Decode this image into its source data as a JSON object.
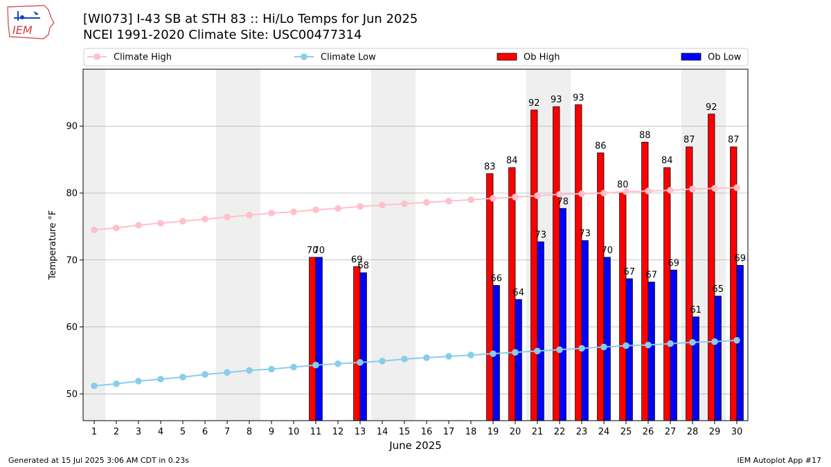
{
  "header": {
    "title_line1": "[WI073] I-43 SB at STH 83  :: Hi/Lo Temps for Jun 2025",
    "title_line2": "NCEI 1991-2020 Climate Site: USC00477314"
  },
  "logo": {
    "text": "IEM",
    "icon": "iowa-state-logo-icon"
  },
  "footer": {
    "left": "Generated at 15 Jul 2025 3:06 AM CDT in 0.23s",
    "right": "IEM Autoplot App #17"
  },
  "colors": {
    "climate_high": "#ffc0cb",
    "climate_low": "#87ceeb",
    "ob_high": "#ff0000",
    "ob_low": "#0000ff",
    "weekend_band": "#efefef",
    "grid": "#b0b0b0"
  },
  "chart_data": {
    "type": "bar",
    "xlabel": "June 2025",
    "ylabel": "Temperature °F",
    "xlim": [
      0.5,
      30.5
    ],
    "ylim": [
      46,
      98.5
    ],
    "yticks": [
      50,
      60,
      70,
      80,
      90
    ],
    "grid": "horizontal",
    "legend_placement": "top",
    "shaded_days": [
      1,
      7,
      8,
      14,
      15,
      21,
      22,
      28,
      29
    ],
    "days": [
      1,
      2,
      3,
      4,
      5,
      6,
      7,
      8,
      9,
      10,
      11,
      12,
      13,
      14,
      15,
      16,
      17,
      18,
      19,
      20,
      21,
      22,
      23,
      24,
      25,
      26,
      27,
      28,
      29,
      30
    ],
    "series": [
      {
        "name": "Climate High",
        "kind": "line",
        "values": [
          74.5,
          74.8,
          75.2,
          75.5,
          75.8,
          76.1,
          76.4,
          76.7,
          77.0,
          77.2,
          77.5,
          77.7,
          78.0,
          78.2,
          78.4,
          78.6,
          78.8,
          79.0,
          79.2,
          79.4,
          79.6,
          79.8,
          79.9,
          80.0,
          80.2,
          80.3,
          80.4,
          80.6,
          80.7,
          80.8
        ]
      },
      {
        "name": "Climate Low",
        "kind": "line",
        "values": [
          51.2,
          51.5,
          51.9,
          52.2,
          52.5,
          52.9,
          53.2,
          53.5,
          53.7,
          54.0,
          54.3,
          54.5,
          54.7,
          54.9,
          55.2,
          55.4,
          55.6,
          55.8,
          56.0,
          56.2,
          56.4,
          56.6,
          56.8,
          57.0,
          57.2,
          57.3,
          57.5,
          57.7,
          57.8,
          58.0
        ]
      },
      {
        "name": "Ob High",
        "kind": "bar",
        "values": [
          null,
          null,
          null,
          null,
          null,
          null,
          null,
          null,
          null,
          null,
          70.4,
          null,
          69.0,
          null,
          null,
          null,
          null,
          null,
          82.9,
          83.8,
          92.4,
          92.9,
          93.2,
          86.0,
          80.2,
          87.6,
          83.8,
          86.9,
          91.8,
          86.9
        ],
        "labels": [
          "",
          "",
          "",
          "",
          "",
          "",
          "",
          "",
          "",
          "",
          "70",
          "",
          "69",
          "",
          "",
          "",
          "",
          "",
          "83",
          "84",
          "92",
          "93",
          "93",
          "86",
          "80",
          "88",
          "84",
          "87",
          "92",
          "87"
        ]
      },
      {
        "name": "Ob Low",
        "kind": "bar",
        "values": [
          null,
          null,
          null,
          null,
          null,
          null,
          null,
          null,
          null,
          null,
          70.4,
          null,
          68.1,
          null,
          null,
          null,
          null,
          null,
          66.2,
          64.1,
          72.7,
          77.7,
          72.9,
          70.4,
          67.2,
          66.7,
          68.5,
          61.5,
          64.6,
          69.2
        ],
        "labels": [
          "",
          "",
          "",
          "",
          "",
          "",
          "",
          "",
          "",
          "",
          "70",
          "",
          "68",
          "",
          "",
          "",
          "",
          "",
          "66",
          "64",
          "73",
          "78",
          "73",
          "70",
          "67",
          "67",
          "69",
          "61",
          "65",
          "69"
        ]
      }
    ]
  }
}
